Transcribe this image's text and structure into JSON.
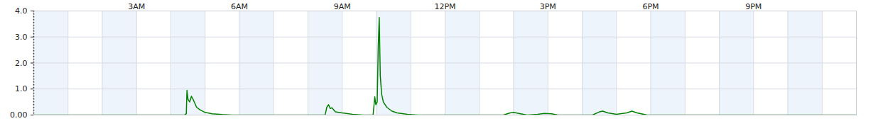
{
  "chart_data": {
    "type": "line",
    "color": "#008000",
    "grid": true,
    "x": [
      0,
      4.4,
      4.45,
      4.47,
      4.5,
      4.55,
      4.6,
      4.65,
      4.7,
      4.75,
      4.85,
      5.0,
      5.2,
      5.5,
      5.8,
      8.5,
      8.55,
      8.6,
      8.65,
      8.7,
      8.8,
      9.0,
      9.3,
      9.6,
      9.9,
      9.95,
      9.98,
      10.02,
      10.05,
      10.08,
      10.11,
      10.15,
      10.2,
      10.3,
      10.45,
      10.6,
      10.9,
      11.2,
      13.7,
      13.9,
      14.0,
      14.2,
      14.4,
      14.7,
      14.9,
      15.1,
      15.3,
      16.3,
      16.5,
      16.6,
      16.75,
      17.0,
      17.3,
      17.45,
      17.6,
      17.9,
      24
    ],
    "values": [
      0,
      0,
      0.05,
      0.95,
      0.6,
      0.5,
      0.72,
      0.6,
      0.45,
      0.3,
      0.2,
      0.1,
      0.05,
      0.02,
      0,
      0,
      0.3,
      0.4,
      0.25,
      0.28,
      0.12,
      0.08,
      0.03,
      0,
      0,
      0.7,
      0.4,
      0.5,
      2.6,
      3.75,
      1.5,
      0.8,
      0.5,
      0.3,
      0.15,
      0.08,
      0.03,
      0,
      0,
      0.08,
      0.1,
      0.05,
      0,
      0.03,
      0.06,
      0.05,
      0,
      0,
      0.12,
      0.15,
      0.08,
      0.03,
      0.08,
      0.15,
      0.08,
      0,
      0
    ],
    "xlim": [
      0,
      24
    ],
    "xticks": [
      {
        "value": 3,
        "label": "3AM"
      },
      {
        "value": 6,
        "label": "6AM"
      },
      {
        "value": 9,
        "label": "9AM"
      },
      {
        "value": 12,
        "label": "12PM"
      },
      {
        "value": 15,
        "label": "3PM"
      },
      {
        "value": 18,
        "label": "6PM"
      },
      {
        "value": 21,
        "label": "9PM"
      }
    ],
    "ylim": [
      0,
      4
    ],
    "yticks": [
      {
        "value": 0,
        "label": "0.00"
      },
      {
        "value": 1,
        "label": "1.0"
      },
      {
        "value": 2,
        "label": "2.0"
      },
      {
        "value": 3,
        "label": "3.0"
      },
      {
        "value": 4,
        "label": "4.0"
      }
    ]
  }
}
